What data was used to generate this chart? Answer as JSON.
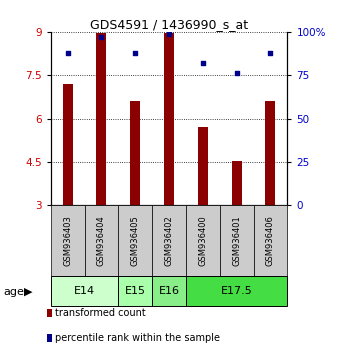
{
  "title": "GDS4591 / 1436990_s_at",
  "samples": [
    "GSM936403",
    "GSM936404",
    "GSM936405",
    "GSM936402",
    "GSM936400",
    "GSM936401",
    "GSM936406"
  ],
  "transformed_counts": [
    7.2,
    8.95,
    6.6,
    8.95,
    5.7,
    4.55,
    6.6
  ],
  "percentile_ranks": [
    88,
    97,
    88,
    99,
    82,
    76,
    88
  ],
  "ylim_left": [
    3,
    9
  ],
  "ylim_right": [
    0,
    100
  ],
  "yticks_left": [
    3,
    4.5,
    6,
    7.5,
    9
  ],
  "yticks_right": [
    0,
    25,
    50,
    75,
    100
  ],
  "ytick_labels_left": [
    "3",
    "4.5",
    "6",
    "7.5",
    "9"
  ],
  "ytick_labels_right": [
    "0",
    "25",
    "50",
    "75",
    "100%"
  ],
  "bar_color": "#8B0000",
  "dot_color": "#00008B",
  "bar_width": 0.3,
  "age_groups": [
    {
      "label": "E14",
      "samples": [
        "GSM936403",
        "GSM936404"
      ],
      "color": "#ccffcc"
    },
    {
      "label": "E15",
      "samples": [
        "GSM936405"
      ],
      "color": "#aaffaa"
    },
    {
      "label": "E16",
      "samples": [
        "GSM936402"
      ],
      "color": "#88ee88"
    },
    {
      "label": "E17.5",
      "samples": [
        "GSM936400",
        "GSM936401",
        "GSM936406"
      ],
      "color": "#44dd44"
    }
  ],
  "sample_box_color": "#cccccc",
  "grid_linestyle": ":",
  "legend_items": [
    {
      "label": "transformed count",
      "color": "#8B0000"
    },
    {
      "label": "percentile rank within the sample",
      "color": "#00008B"
    }
  ]
}
